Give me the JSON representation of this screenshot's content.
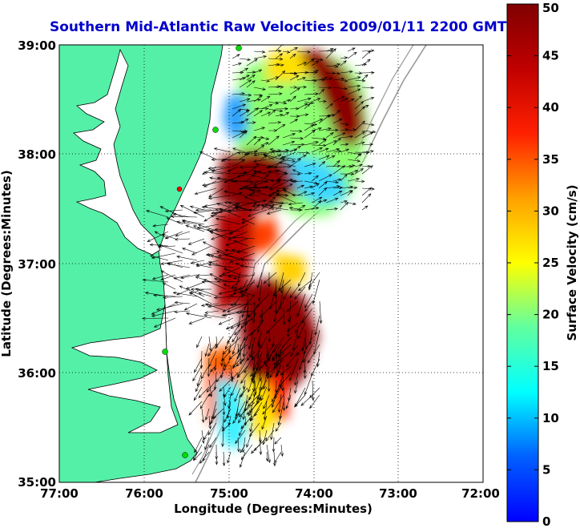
{
  "title": "Southern Mid-Atlantic Raw Velocities 2009/01/11 2200 GMT",
  "chart_data": {
    "type": "heatmap",
    "title": "Southern Mid-Atlantic Raw Velocities 2009/01/11 2200 GMT",
    "xlabel": "Longitude (Degrees:Minutes)",
    "ylabel": "Latitude (Degrees:Minutes)",
    "colorbar_label": "Surface Velocity (cm/s)",
    "x_ticks": [
      "77:00",
      "76:00",
      "75:00",
      "74:00",
      "73:00",
      "72:00"
    ],
    "y_ticks": [
      "39:00",
      "38:00",
      "37:00",
      "36:00",
      "35:00"
    ],
    "colorbar_ticks": [
      "50",
      "45",
      "40",
      "35",
      "30",
      "25",
      "20",
      "15",
      "10",
      "5",
      "0"
    ],
    "xlim": [
      -77,
      -72
    ],
    "ylim": [
      35,
      39
    ],
    "clim": [
      0,
      50
    ],
    "grid": true,
    "land_color": "#55f0a8",
    "colormap": "jet"
  }
}
